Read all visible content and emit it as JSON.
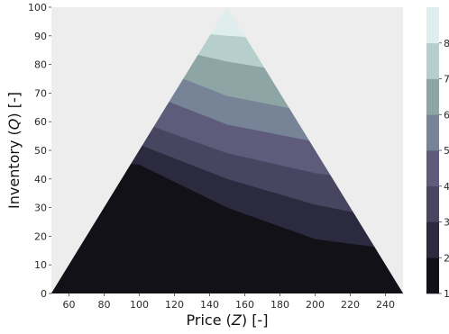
{
  "chart_data": {
    "type": "contourf",
    "xlabel": "Price (Z) [-]",
    "xlabel_parts": {
      "prefix": "Price (",
      "var": "Z",
      "suffix": ") [-]"
    },
    "ylabel": "Inventory (Q) [-]",
    "ylabel_parts": {
      "prefix": "Inventory (",
      "var": "Q",
      "suffix": ") [-]"
    },
    "xlim": [
      50,
      250
    ],
    "ylim": [
      0,
      100
    ],
    "xticks": [
      60,
      80,
      100,
      120,
      140,
      160,
      180,
      200,
      220,
      240
    ],
    "yticks": [
      0,
      10,
      20,
      30,
      40,
      50,
      60,
      70,
      80,
      90,
      100
    ],
    "background_color": "#ededed",
    "domain": {
      "shape": "triangle",
      "vertices": [
        [
          50,
          0
        ],
        [
          150,
          100
        ],
        [
          250,
          0
        ]
      ]
    },
    "contour_boundaries": [
      {
        "from": 1,
        "to": 2,
        "points": [
          [
            50,
            48
          ],
          [
            100,
            45
          ],
          [
            150,
            30
          ],
          [
            200,
            19
          ],
          [
            250,
            15
          ]
        ]
      },
      {
        "from": 2,
        "to": 3,
        "points": [
          [
            50,
            54
          ],
          [
            100,
            52
          ],
          [
            150,
            40
          ],
          [
            200,
            31
          ],
          [
            250,
            25
          ]
        ]
      },
      {
        "from": 3,
        "to": 4,
        "points": [
          [
            50,
            62
          ],
          [
            100,
            60
          ],
          [
            150,
            49
          ],
          [
            200,
            42
          ],
          [
            250,
            38
          ]
        ]
      },
      {
        "from": 4,
        "to": 5,
        "points": [
          [
            50,
            72
          ],
          [
            100,
            71
          ],
          [
            150,
            59
          ],
          [
            200,
            53
          ],
          [
            250,
            50
          ]
        ]
      },
      {
        "from": 5,
        "to": 6,
        "points": [
          [
            50,
            82
          ],
          [
            100,
            81
          ],
          [
            150,
            69
          ],
          [
            200,
            63
          ],
          [
            250,
            60
          ]
        ]
      },
      {
        "from": 6,
        "to": 7,
        "points": [
          [
            50,
            88
          ],
          [
            100,
            88
          ],
          [
            150,
            81
          ],
          [
            200,
            76
          ],
          [
            250,
            74
          ]
        ]
      },
      {
        "from": 7,
        "to": 8,
        "points": [
          [
            50,
            93
          ],
          [
            100,
            93
          ],
          [
            150,
            90
          ],
          [
            200,
            88
          ],
          [
            250,
            87
          ]
        ]
      }
    ],
    "levels": [
      {
        "min": 1,
        "max": 2,
        "color": "#121118"
      },
      {
        "min": 2,
        "max": 3,
        "color": "#2c2a3e"
      },
      {
        "min": 3,
        "max": 4,
        "color": "#47455f"
      },
      {
        "min": 4,
        "max": 5,
        "color": "#5e5c7a"
      },
      {
        "min": 5,
        "max": 6,
        "color": "#778498"
      },
      {
        "min": 6,
        "max": 7,
        "color": "#8ea5a6"
      },
      {
        "min": 7,
        "max": 8,
        "color": "#b6cfcc"
      },
      {
        "min": 8,
        "max": 9,
        "color": "#e0eded"
      }
    ],
    "colorbar": {
      "ticks": [
        "1",
        "2",
        "3",
        "4",
        "5",
        "6",
        "7",
        "8"
      ],
      "range": [
        1,
        9
      ]
    }
  }
}
